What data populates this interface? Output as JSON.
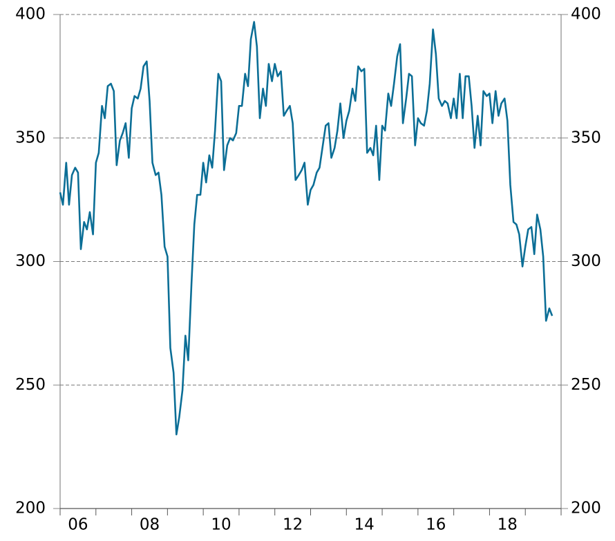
{
  "chart_data": {
    "type": "line",
    "x": [
      2006.0,
      2006.08,
      2006.17,
      2006.25,
      2006.33,
      2006.42,
      2006.5,
      2006.58,
      2006.67,
      2006.75,
      2006.83,
      2006.92,
      2007.0,
      2007.08,
      2007.17,
      2007.25,
      2007.33,
      2007.42,
      2007.5,
      2007.58,
      2007.67,
      2007.75,
      2007.83,
      2007.92,
      2008.0,
      2008.08,
      2008.17,
      2008.25,
      2008.33,
      2008.42,
      2008.5,
      2008.58,
      2008.67,
      2008.75,
      2008.83,
      2008.92,
      2009.0,
      2009.08,
      2009.17,
      2009.25,
      2009.33,
      2009.42,
      2009.5,
      2009.58,
      2009.67,
      2009.75,
      2009.83,
      2009.92,
      2010.0,
      2010.08,
      2010.17,
      2010.25,
      2010.33,
      2010.42,
      2010.5,
      2010.58,
      2010.67,
      2010.75,
      2010.83,
      2010.92,
      2011.0,
      2011.08,
      2011.17,
      2011.25,
      2011.33,
      2011.42,
      2011.5,
      2011.58,
      2011.67,
      2011.75,
      2011.83,
      2011.92,
      2012.0,
      2012.08,
      2012.17,
      2012.25,
      2012.33,
      2012.42,
      2012.5,
      2012.58,
      2012.67,
      2012.75,
      2012.83,
      2012.92,
      2013.0,
      2013.08,
      2013.17,
      2013.25,
      2013.33,
      2013.42,
      2013.5,
      2013.58,
      2013.67,
      2013.75,
      2013.83,
      2013.92,
      2014.0,
      2014.08,
      2014.17,
      2014.25,
      2014.33,
      2014.42,
      2014.5,
      2014.58,
      2014.67,
      2014.75,
      2014.83,
      2014.92,
      2015.0,
      2015.08,
      2015.17,
      2015.25,
      2015.33,
      2015.42,
      2015.5,
      2015.58,
      2015.67,
      2015.75,
      2015.83,
      2015.92,
      2016.0,
      2016.08,
      2016.17,
      2016.25,
      2016.33,
      2016.42,
      2016.5,
      2016.58,
      2016.67,
      2016.75,
      2016.83,
      2016.92,
      2017.0,
      2017.08,
      2017.17,
      2017.25,
      2017.33,
      2017.42,
      2017.5,
      2017.58,
      2017.67,
      2017.75,
      2017.83,
      2017.92,
      2018.0,
      2018.08,
      2018.17,
      2018.25,
      2018.33,
      2018.42,
      2018.5,
      2018.58,
      2018.67,
      2018.75,
      2018.83,
      2018.92,
      2019.0,
      2019.08,
      2019.17,
      2019.25,
      2019.33,
      2019.42,
      2019.5,
      2019.58,
      2019.67,
      2019.75
    ],
    "series": [
      {
        "color": "#0b6e96",
        "values": [
          328,
          323,
          340,
          323,
          335,
          338,
          336,
          305,
          316,
          313,
          320,
          311,
          340,
          344,
          363,
          358,
          371,
          372,
          369,
          339,
          349,
          352,
          356,
          342,
          362,
          367,
          366,
          370,
          379,
          381,
          365,
          340,
          335,
          336,
          327,
          306,
          302,
          265,
          255,
          230,
          237,
          248,
          270,
          260,
          291,
          315,
          327,
          327,
          340,
          332,
          343,
          338,
          353,
          376,
          373,
          337,
          347,
          350,
          349,
          352,
          363,
          363,
          376,
          371,
          390,
          397,
          387,
          358,
          370,
          363,
          380,
          373,
          380,
          375,
          377,
          359,
          361,
          363,
          356,
          333,
          335,
          337,
          340,
          323,
          329,
          331,
          336,
          338,
          346,
          355,
          356,
          342,
          346,
          353,
          364,
          350,
          357,
          361,
          370,
          365,
          379,
          377,
          378,
          344,
          346,
          343,
          355,
          333,
          355,
          353,
          368,
          363,
          372,
          383,
          388,
          356,
          366,
          376,
          375,
          347,
          358,
          356,
          355,
          361,
          372,
          394,
          384,
          366,
          363,
          365,
          364,
          358,
          366,
          358,
          376,
          358,
          375,
          375,
          363,
          346,
          359,
          347,
          369,
          367,
          368,
          356,
          369,
          359,
          364,
          366,
          357,
          331,
          316,
          315,
          311,
          298,
          306,
          313,
          314,
          303,
          319,
          313,
          302,
          276,
          281,
          278
        ]
      }
    ],
    "xlim": [
      2006,
      2020
    ],
    "xticks": [
      {
        "value": 2006.5,
        "label": "06"
      },
      {
        "value": 2008.5,
        "label": "08"
      },
      {
        "value": 2010.5,
        "label": "10"
      },
      {
        "value": 2012.5,
        "label": "12"
      },
      {
        "value": 2014.5,
        "label": "14"
      },
      {
        "value": 2016.5,
        "label": "16"
      },
      {
        "value": 2018.5,
        "label": "18"
      }
    ],
    "ylim": [
      200,
      400
    ],
    "yticks": [
      200,
      250,
      300,
      350,
      400
    ],
    "y2lim": [
      200,
      400
    ],
    "y2ticks": [
      200,
      250,
      300,
      350,
      400
    ],
    "grid": true
  }
}
